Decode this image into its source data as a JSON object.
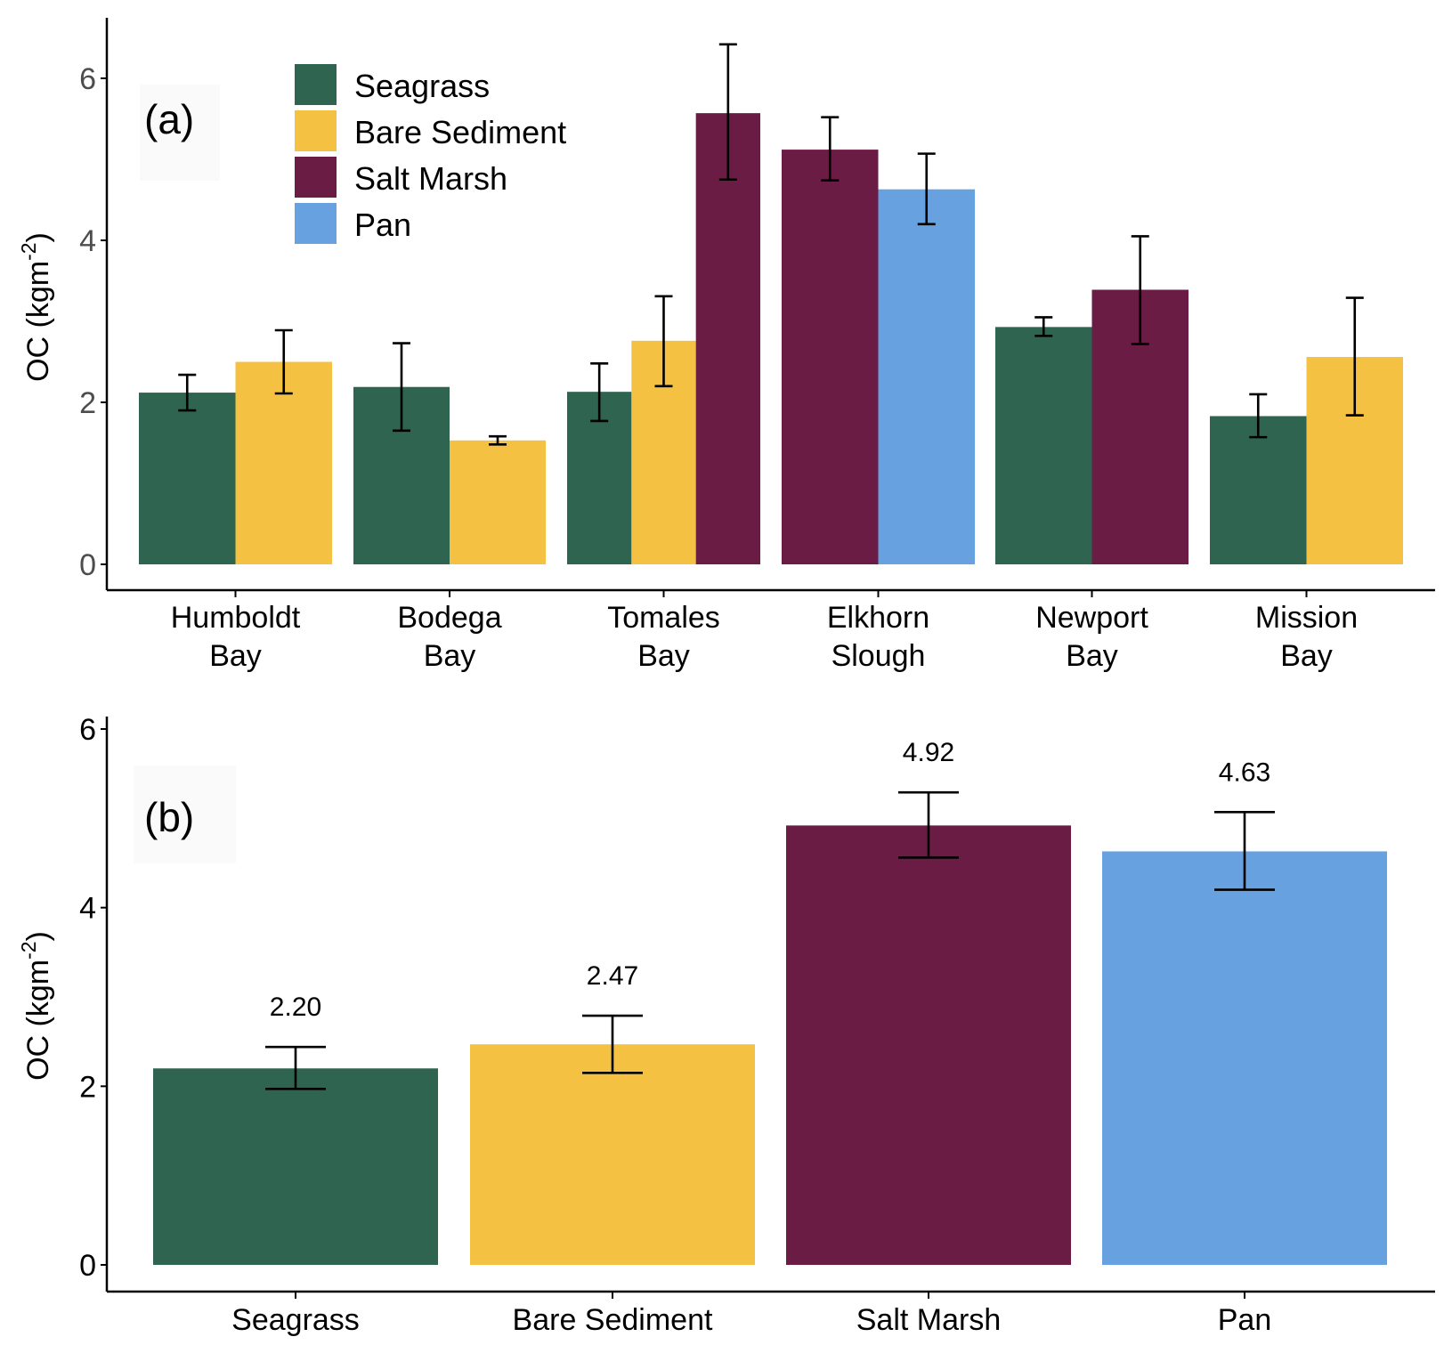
{
  "colors": {
    "seagrass": "#2e6450",
    "bare_sediment": "#f4c142",
    "salt_marsh": "#6a1c45",
    "pan": "#68a1df"
  },
  "chart_data": [
    {
      "panel": "(a)",
      "type": "bar",
      "ylabel": "OC (kgm",
      "ylabel_sup": "-2",
      "ylabel_close": ")",
      "ylim": [
        0,
        6.8
      ],
      "yticks": [
        "0",
        "2",
        "4",
        "6"
      ],
      "legend": {
        "placement": "top-left",
        "entries": [
          {
            "key": "seagrass",
            "label": "Seagrass"
          },
          {
            "key": "bare_sediment",
            "label": "Bare Sediment"
          },
          {
            "key": "salt_marsh",
            "label": "Salt Marsh"
          },
          {
            "key": "pan",
            "label": "Pan"
          }
        ]
      },
      "categories": [
        {
          "label": [
            "Humboldt",
            "Bay"
          ],
          "bars": [
            {
              "key": "seagrass",
              "value": 2.12,
              "err_low": 1.9,
              "err_high": 2.34
            },
            {
              "key": "bare_sediment",
              "value": 2.5,
              "err_low": 2.11,
              "err_high": 2.89
            }
          ]
        },
        {
          "label": [
            "Bodega",
            "Bay"
          ],
          "bars": [
            {
              "key": "seagrass",
              "value": 2.19,
              "err_low": 1.65,
              "err_high": 2.73
            },
            {
              "key": "bare_sediment",
              "value": 1.53,
              "err_low": 1.48,
              "err_high": 1.58
            }
          ]
        },
        {
          "label": [
            "Tomales",
            "Bay"
          ],
          "bars": [
            {
              "key": "seagrass",
              "value": 2.13,
              "err_low": 1.77,
              "err_high": 2.48
            },
            {
              "key": "bare_sediment",
              "value": 2.76,
              "err_low": 2.2,
              "err_high": 3.31
            },
            {
              "key": "salt_marsh",
              "value": 5.57,
              "err_low": 4.75,
              "err_high": 6.42
            }
          ]
        },
        {
          "label": [
            "Elkhorn",
            "Slough"
          ],
          "bars": [
            {
              "key": "salt_marsh",
              "value": 5.12,
              "err_low": 4.74,
              "err_high": 5.52
            },
            {
              "key": "pan",
              "value": 4.63,
              "err_low": 4.2,
              "err_high": 5.07
            }
          ]
        },
        {
          "label": [
            "Newport",
            "Bay"
          ],
          "bars": [
            {
              "key": "seagrass",
              "value": 2.93,
              "err_low": 2.82,
              "err_high": 3.05
            },
            {
              "key": "salt_marsh",
              "value": 3.39,
              "err_low": 2.72,
              "err_high": 4.05
            }
          ]
        },
        {
          "label": [
            "Mission",
            "Bay"
          ],
          "bars": [
            {
              "key": "seagrass",
              "value": 1.83,
              "err_low": 1.57,
              "err_high": 2.1
            },
            {
              "key": "bare_sediment",
              "value": 2.56,
              "err_low": 1.84,
              "err_high": 3.29
            }
          ]
        }
      ]
    },
    {
      "panel": "(b)",
      "type": "bar",
      "ylabel": "OC (kgm",
      "ylabel_sup": "-2",
      "ylabel_close": ")",
      "ylim": [
        0,
        6.0
      ],
      "yticks": [
        "0",
        "2",
        "4",
        "6"
      ],
      "categories": [
        {
          "key": "seagrass",
          "label": "Seagrass",
          "value": 2.2,
          "value_label": "2.20",
          "err_low": 1.97,
          "err_high": 2.44
        },
        {
          "key": "bare_sediment",
          "label": "Bare Sediment",
          "value": 2.47,
          "value_label": "2.47",
          "err_low": 2.15,
          "err_high": 2.79
        },
        {
          "key": "salt_marsh",
          "label": "Salt Marsh",
          "value": 4.92,
          "value_label": "4.92",
          "err_low": 4.56,
          "err_high": 5.29
        },
        {
          "key": "pan",
          "label": "Pan",
          "value": 4.63,
          "value_label": "4.63",
          "err_low": 4.2,
          "err_high": 5.07
        }
      ]
    }
  ]
}
